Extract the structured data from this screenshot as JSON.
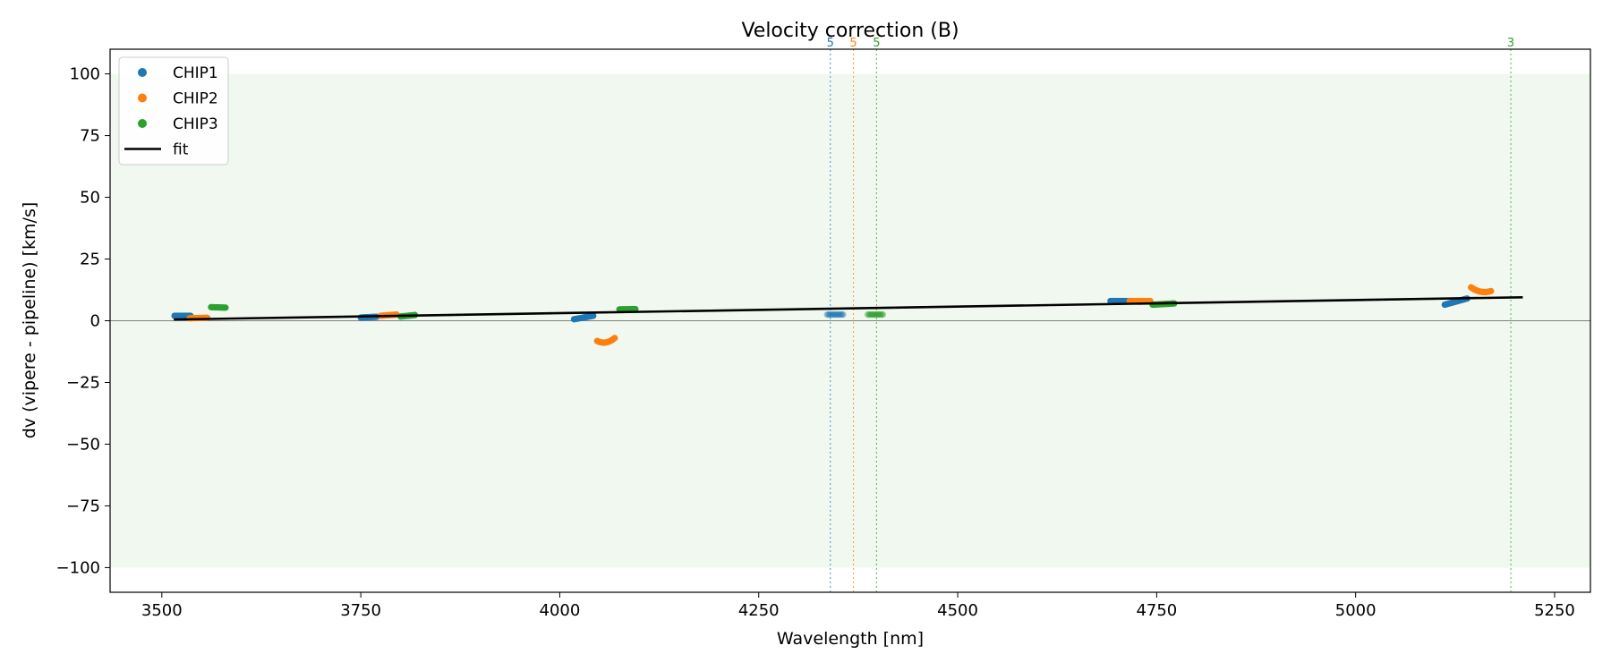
{
  "chart_data": {
    "type": "scatter",
    "title": "Velocity correction (B)",
    "xlabel": "Wavelength [nm]",
    "ylabel": "dv (vipere - pipeline) [km/s]",
    "xlim": [
      3435,
      5295
    ],
    "ylim": [
      -110,
      110
    ],
    "xticks": [
      3500,
      3750,
      4000,
      4250,
      4500,
      4750,
      5000,
      5250
    ],
    "yticks": [
      100,
      75,
      50,
      25,
      0,
      -25,
      -50,
      -75,
      -100
    ],
    "grid": false,
    "legend_position": "top-left",
    "band": {
      "y0": -100,
      "y1": 100,
      "color": "#2ca02c"
    },
    "zero_line": {
      "y": 0,
      "color": "#808080"
    },
    "series": [
      {
        "name": "CHIP1",
        "color": "#1f77b4",
        "segments": [
          {
            "x": [
              3516,
              3536
            ],
            "y": [
              2.0,
              2.0
            ],
            "n": 14
          },
          {
            "x": [
              3750,
              3770
            ],
            "y": [
              1.3,
              1.6
            ],
            "n": 14
          },
          {
            "x": [
              4018,
              4042
            ],
            "y": [
              0.6,
              2.0
            ],
            "n": 16
          },
          {
            "x": [
              4336,
              4356
            ],
            "y": [
              2.5,
              2.5
            ],
            "n": 12,
            "faded": true
          },
          {
            "x": [
              4692,
              4718
            ],
            "y": [
              8.0,
              8.0
            ],
            "n": 18
          },
          {
            "x": [
              5112,
              5140
            ],
            "y": [
              6.5,
              9.0
            ],
            "n": 18
          }
        ]
      },
      {
        "name": "CHIP2",
        "color": "#ff7f0e",
        "segments": [
          {
            "x": [
              3535,
              3557
            ],
            "y": [
              1.0,
              1.2
            ],
            "n": 14
          },
          {
            "x": [
              3775,
              3795
            ],
            "y": [
              2.0,
              2.5
            ],
            "n": 14
          },
          {
            "x": [
              4047,
              4069
            ],
            "y": [
              -8.2,
              -7.0
            ],
            "n": 16,
            "dip": -1.2
          },
          {
            "x": [
              4716,
              4742
            ],
            "y": [
              8.0,
              8.0
            ],
            "n": 18
          },
          {
            "x": [
              5145,
              5170
            ],
            "y": [
              13.5,
              12.0
            ],
            "n": 18,
            "dip": -1.0
          }
        ]
      },
      {
        "name": "CHIP3",
        "color": "#2ca02c",
        "segments": [
          {
            "x": [
              3562,
              3580
            ],
            "y": [
              5.5,
              5.3
            ],
            "n": 12
          },
          {
            "x": [
              3800,
              3818
            ],
            "y": [
              1.7,
              2.3
            ],
            "n": 12
          },
          {
            "x": [
              4075,
              4095
            ],
            "y": [
              4.6,
              4.7
            ],
            "n": 12
          },
          {
            "x": [
              4387,
              4406
            ],
            "y": [
              2.5,
              2.5
            ],
            "n": 12,
            "faded": true
          },
          {
            "x": [
              4745,
              4772
            ],
            "y": [
              6.5,
              7.0
            ],
            "n": 18
          }
        ]
      }
    ],
    "fit": {
      "name": "fit",
      "color": "#000000",
      "x": [
        3515,
        5210
      ],
      "y": [
        0.5,
        9.5
      ]
    },
    "markers": [
      {
        "x": 4340,
        "label": "5",
        "color": "#1f77b4"
      },
      {
        "x": 4369,
        "label": "5",
        "color": "#ff7f0e"
      },
      {
        "x": 4398,
        "label": "5",
        "color": "#2ca02c"
      },
      {
        "x": 5195,
        "label": "3",
        "color": "#2ca02c"
      }
    ]
  }
}
